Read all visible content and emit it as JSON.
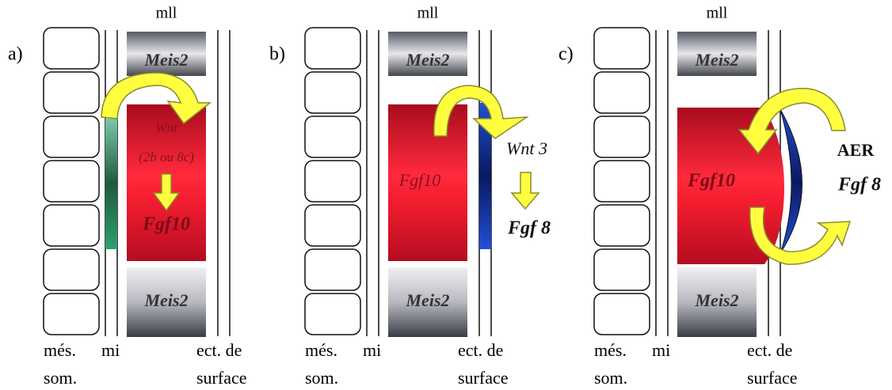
{
  "panels": [
    {
      "label": "a)",
      "top": "mll",
      "meis_top": "Meis2",
      "meis_bottom": "Meis2",
      "bottom_labels": [
        "més.",
        "som.",
        "mi",
        "ect. de",
        "surface"
      ],
      "center_texts": [
        "Wnt",
        "(2b ou 8c)",
        "Fgf10"
      ]
    },
    {
      "label": "b)",
      "top": "mll",
      "meis_top": "Meis2",
      "meis_bottom": "Meis2",
      "bottom_labels": [
        "més.",
        "som.",
        "mi",
        "ect. de",
        "surface"
      ],
      "center_texts": [
        "Fgf10",
        "Wnt 3",
        "Fgf 8"
      ]
    },
    {
      "label": "c)",
      "top": "mll",
      "meis_top": "Meis2",
      "meis_bottom": "Meis2",
      "bottom_labels": [
        "més.",
        "som.",
        "mi",
        "ect. de",
        "surface"
      ],
      "center_texts": [
        "Fgf10",
        "AER",
        "Fgf 8"
      ]
    }
  ]
}
